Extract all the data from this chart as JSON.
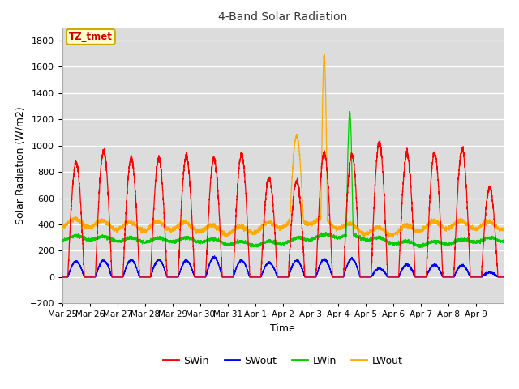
{
  "title": "4-Band Solar Radiation",
  "xlabel": "Time",
  "ylabel": "Solar Radiation (W/m2)",
  "ylim": [
    -200,
    1900
  ],
  "yticks": [
    -200,
    0,
    200,
    400,
    600,
    800,
    1000,
    1200,
    1400,
    1600,
    1800
  ],
  "bg_color": "#dcdcdc",
  "legend_labels": [
    "SWin",
    "SWout",
    "LWin",
    "LWout"
  ],
  "legend_colors": [
    "#ff0000",
    "#0000ff",
    "#00cc00",
    "#ffaa00"
  ],
  "annotation_text": "TZ_tmet",
  "annotation_bg": "#ffffcc",
  "annotation_border": "#ccaa00",
  "annotation_text_color": "#cc0000",
  "x_tick_labels": [
    "Mar 25",
    "Mar 26",
    "Mar 27",
    "Mar 28",
    "Mar 29",
    "Mar 30",
    "Mar 31",
    "Apr 1",
    "Apr 2",
    "Apr 3",
    "Apr 4",
    "Apr 5",
    "Apr 6",
    "Apr 7",
    "Apr 8",
    "Apr 9"
  ],
  "n_days": 16,
  "points_per_day": 288,
  "SWin_peaks": [
    870,
    960,
    900,
    900,
    910,
    900,
    930,
    750,
    730,
    940,
    930,
    1020,
    940,
    940,
    970,
    680
  ],
  "SWout_peaks": [
    120,
    125,
    130,
    130,
    125,
    150,
    125,
    110,
    125,
    135,
    140,
    65,
    95,
    95,
    90,
    35
  ],
  "LWin_base": 280,
  "LWout_base": 385,
  "special_LWout_day": 9,
  "special_LWout_peak": 1620,
  "special_LWin_day": 10,
  "special_LWin_peak": 1210,
  "figsize": [
    6.4,
    4.8
  ],
  "dpi": 100
}
